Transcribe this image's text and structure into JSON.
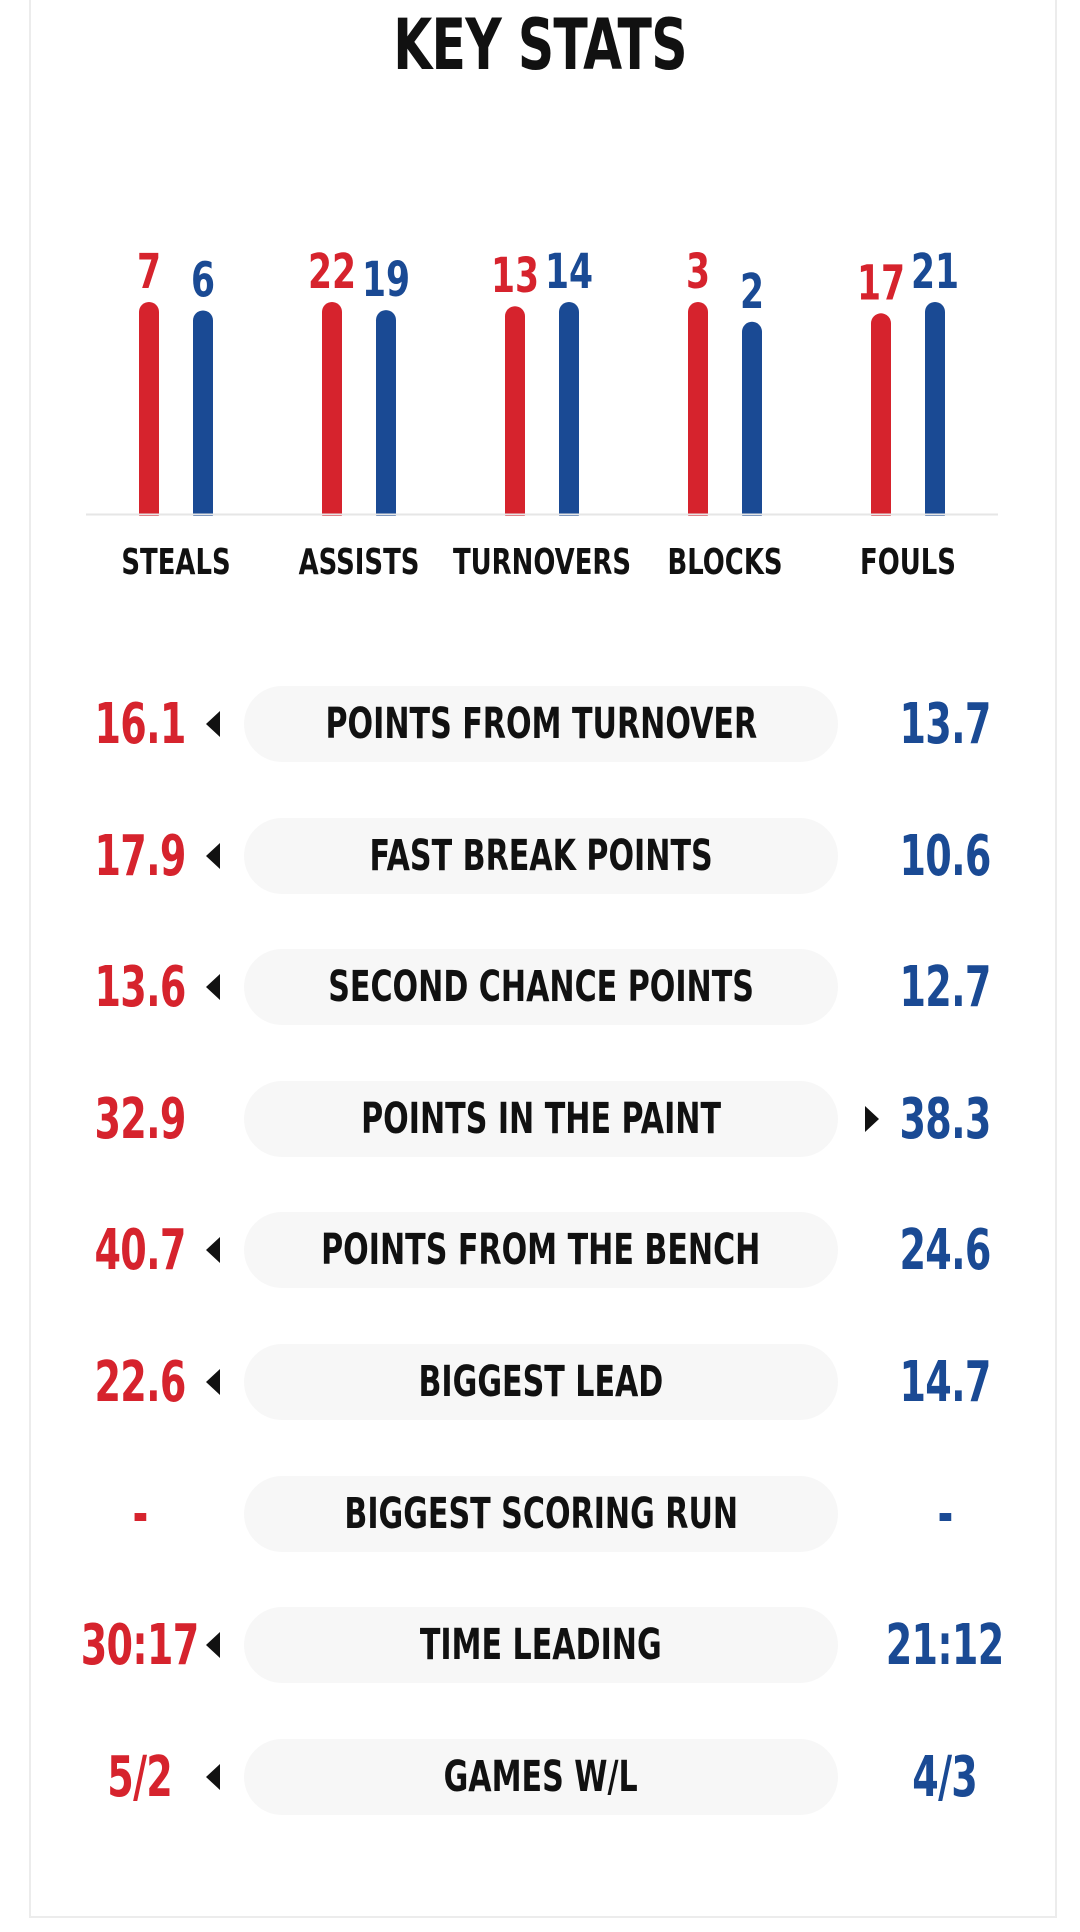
{
  "title": "KEY STATS",
  "colors": {
    "home": "#d6232d",
    "away": "#1a4a94",
    "pill_bg": "#f7f7f7",
    "text": "#111111"
  },
  "chart_data": {
    "type": "bar",
    "title": "KEY STATS",
    "categories": [
      "STEALS",
      "ASSISTS",
      "TURNOVERS",
      "BLOCKS",
      "FOULS"
    ],
    "series": [
      {
        "values": [
          7,
          22,
          13,
          3,
          17
        ],
        "color": "#d6232d"
      },
      {
        "values": [
          6,
          19,
          14,
          2,
          21
        ],
        "color": "#1a4a94"
      }
    ],
    "xlabel": "",
    "ylabel": "",
    "grid": false,
    "legend": "none",
    "note": "bars are scaled within each category pair"
  },
  "stats": [
    {
      "label": "POINTS FROM TURNOVER",
      "home": "16.1",
      "away": "13.7",
      "arrow": "home"
    },
    {
      "label": "FAST BREAK POINTS",
      "home": "17.9",
      "away": "10.6",
      "arrow": "home"
    },
    {
      "label": "SECOND CHANCE POINTS",
      "home": "13.6",
      "away": "12.7",
      "arrow": "home"
    },
    {
      "label": "POINTS IN THE PAINT",
      "home": "32.9",
      "away": "38.3",
      "arrow": "away"
    },
    {
      "label": "POINTS FROM THE BENCH",
      "home": "40.7",
      "away": "24.6",
      "arrow": "home"
    },
    {
      "label": "BIGGEST LEAD",
      "home": "22.6",
      "away": "14.7",
      "arrow": "home"
    },
    {
      "label": "BIGGEST SCORING RUN",
      "home": "-",
      "away": "-",
      "arrow": "none"
    },
    {
      "label": "TIME LEADING",
      "home": "30:17",
      "away": "21:12",
      "arrow": "home"
    },
    {
      "label": "GAMES W/L",
      "home": "5/2",
      "away": "4/3",
      "arrow": "home"
    }
  ]
}
